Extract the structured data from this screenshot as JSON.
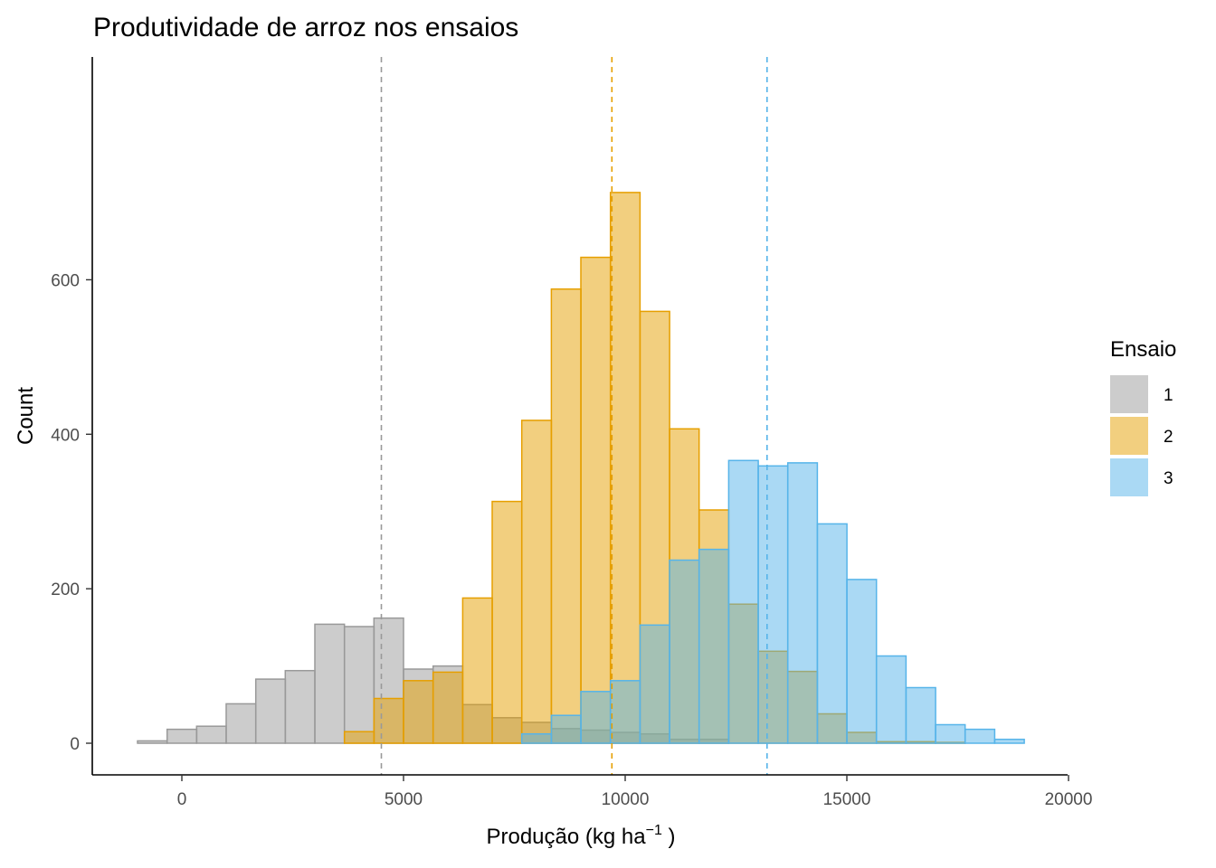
{
  "chart_data": {
    "type": "histogram",
    "title": "Produtividade de arroz nos ensaios",
    "xlabel": {
      "main": "Produção (kg ha",
      "sup": "−1",
      "tail": " )"
    },
    "ylabel": "Count",
    "xlim": [
      -2000,
      20000
    ],
    "ylim": [
      -30,
      740
    ],
    "x_ticks": [
      0,
      5000,
      10000,
      15000,
      20000
    ],
    "y_ticks": [
      0,
      200,
      400,
      600
    ],
    "grid": false,
    "legend": {
      "title": "Ensaio",
      "position": "right"
    },
    "bin_width": 666.7,
    "bin_start": -1000,
    "series": [
      {
        "name": "1",
        "fill": "#999999",
        "stroke": "#999999",
        "mean": 4500,
        "counts": [
          3,
          18,
          22,
          51,
          83,
          94,
          154,
          151,
          162,
          96,
          100,
          50,
          33,
          27,
          19,
          17,
          14,
          12,
          5,
          5,
          0,
          0,
          0,
          0,
          0,
          0,
          0,
          0,
          0,
          0
        ]
      },
      {
        "name": "2",
        "fill": "#E69F00",
        "stroke": "#E69F00",
        "mean": 9700,
        "counts": [
          0,
          0,
          0,
          0,
          0,
          0,
          0,
          15,
          58,
          81,
          92,
          188,
          313,
          418,
          588,
          629,
          713,
          559,
          407,
          302,
          180,
          119,
          93,
          38,
          14,
          2,
          2,
          1,
          0,
          0
        ]
      },
      {
        "name": "3",
        "fill": "#56B4E9",
        "stroke": "#56B4E9",
        "mean": 13200,
        "counts": [
          0,
          0,
          0,
          0,
          0,
          0,
          0,
          0,
          0,
          0,
          0,
          0,
          0,
          12,
          36,
          67,
          81,
          153,
          237,
          251,
          366,
          359,
          363,
          284,
          212,
          113,
          72,
          24,
          18,
          5
        ]
      }
    ]
  }
}
